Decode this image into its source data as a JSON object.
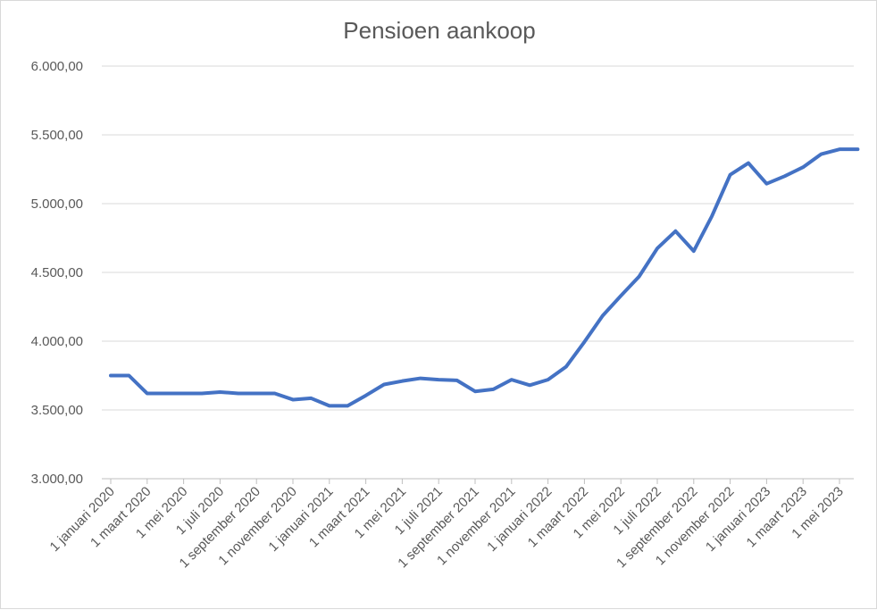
{
  "colors": {
    "series": "#4472C4"
  },
  "chart_data": {
    "type": "line",
    "title": "Pensioen aankoop",
    "xlabel": "",
    "ylabel": "",
    "ylim": [
      3000,
      6000
    ],
    "yticks": [
      3000,
      3500,
      4000,
      4500,
      5000,
      5500,
      6000
    ],
    "ytick_labels": [
      "3.000,00",
      "3.500,00",
      "4.000,00",
      "4.500,00",
      "5.000,00",
      "5.500,00",
      "6.000,00"
    ],
    "grid": true,
    "legend": "none",
    "x": [
      "2020-01",
      "2020-02",
      "2020-03",
      "2020-04",
      "2020-05",
      "2020-06",
      "2020-07",
      "2020-08",
      "2020-09",
      "2020-10",
      "2020-11",
      "2020-12",
      "2021-01",
      "2021-02",
      "2021-03",
      "2021-04",
      "2021-05",
      "2021-06",
      "2021-07",
      "2021-08",
      "2021-09",
      "2021-10",
      "2021-11",
      "2021-12",
      "2022-01",
      "2022-02",
      "2022-03",
      "2022-04",
      "2022-05",
      "2022-06",
      "2022-07",
      "2022-08",
      "2022-09",
      "2022-10",
      "2022-11",
      "2022-12",
      "2023-01",
      "2023-02",
      "2023-03",
      "2023-04",
      "2023-05",
      "2023-06"
    ],
    "xtick_labels": [
      "1 januari 2020",
      "1 maart 2020",
      "1 mei 2020",
      "1 juli 2020",
      "1 september 2020",
      "1 november 2020",
      "1 januari 2021",
      "1 maart 2021",
      "1 mei 2021",
      "1 juli 2021",
      "1 september 2021",
      "1 november 2021",
      "1 januari 2022",
      "1 maart 2022",
      "1 mei 2022",
      "1 juli 2022",
      "1 september 2022",
      "1 november 2022",
      "1 januari 2023",
      "1 maart 2023",
      "1 mei 2023"
    ],
    "series": [
      {
        "values": [
          3750,
          3750,
          3620,
          3620,
          3620,
          3620,
          3630,
          3620,
          3620,
          3620,
          3575,
          3585,
          3530,
          3530,
          3605,
          3685,
          3710,
          3730,
          3720,
          3715,
          3635,
          3650,
          3720,
          3680,
          3720,
          3815,
          3995,
          4185,
          4330,
          4470,
          4675,
          4800,
          4655,
          4910,
          5210,
          5295,
          5145,
          5200,
          5265,
          5360,
          5395,
          5395
        ]
      }
    ]
  }
}
